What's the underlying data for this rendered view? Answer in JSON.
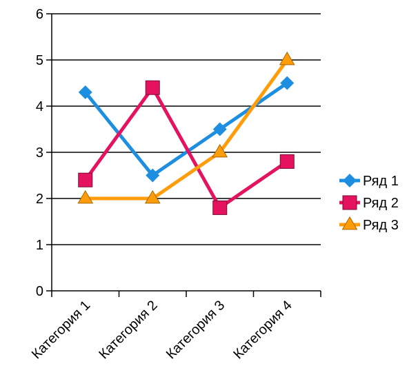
{
  "chart_data": {
    "type": "line",
    "categories": [
      "Категория 1",
      "Категория 2",
      "Категория 3",
      "Категория 4"
    ],
    "series": [
      {
        "name": "Ряд 1",
        "values": [
          4.3,
          2.5,
          3.5,
          4.5
        ],
        "color": "#1e8fe0",
        "marker": "diamond"
      },
      {
        "name": "Ряд 2",
        "values": [
          2.4,
          4.4,
          1.8,
          2.8
        ],
        "color": "#e5125f",
        "marker": "square"
      },
      {
        "name": "Ряд 3",
        "values": [
          2.0,
          2.0,
          3.0,
          5.0
        ],
        "color": "#ff9c0a",
        "marker": "triangle"
      }
    ],
    "y_ticks": [
      "0",
      "1",
      "2",
      "3",
      "4",
      "5",
      "6"
    ],
    "ylim": [
      0,
      6
    ],
    "grid": true,
    "legend_position": "right"
  }
}
